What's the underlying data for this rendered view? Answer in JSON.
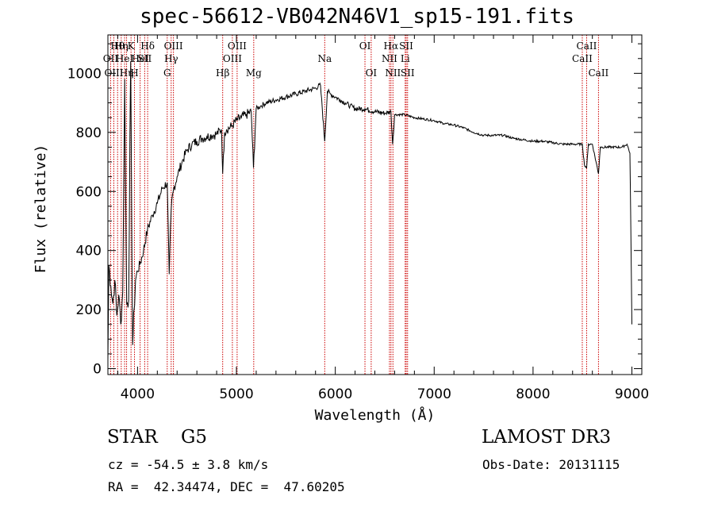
{
  "chart_data": {
    "type": "line",
    "title": "spec-56612-VB042N46V1_sp15-191.fits",
    "xlabel": "Wavelength (Å)",
    "ylabel": "Flux (relative)",
    "xlim": [
      3700,
      9100
    ],
    "ylim": [
      -20,
      1130
    ],
    "xticks": [
      4000,
      5000,
      6000,
      7000,
      8000,
      9000
    ],
    "yticks": [
      0,
      200,
      400,
      600,
      800,
      1000
    ],
    "series": [
      {
        "name": "spectrum",
        "x": [
          3700,
          3710,
          3730,
          3750,
          3770,
          3790,
          3810,
          3830,
          3850,
          3870,
          3890,
          3910,
          3930,
          3950,
          3965,
          3980,
          4000,
          4030,
          4060,
          4100,
          4150,
          4200,
          4250,
          4300,
          4320,
          4340,
          4360,
          4400,
          4450,
          4500,
          4550,
          4600,
          4650,
          4700,
          4750,
          4800,
          4850,
          4861,
          4880,
          4900,
          4950,
          5000,
          5050,
          5100,
          5150,
          5172,
          5200,
          5250,
          5300,
          5400,
          5500,
          5600,
          5700,
          5800,
          5850,
          5893,
          5920,
          5950,
          6000,
          6050,
          6100,
          6150,
          6200,
          6300,
          6400,
          6500,
          6563,
          6580,
          6600,
          6700,
          6800,
          6900,
          7000,
          7100,
          7200,
          7300,
          7400,
          7500,
          7600,
          7700,
          7800,
          7900,
          8000,
          8100,
          8200,
          8300,
          8400,
          8498,
          8520,
          8542,
          8560,
          8600,
          8662,
          8680,
          8700,
          8800,
          8900,
          8950,
          8980,
          9000
        ],
        "y": [
          30,
          350,
          280,
          220,
          300,
          180,
          250,
          150,
          260,
          980,
          220,
          230,
          1040,
          80,
          200,
          300,
          330,
          360,
          400,
          470,
          520,
          560,
          610,
          630,
          320,
          540,
          600,
          650,
          700,
          740,
          760,
          770,
          780,
          785,
          790,
          795,
          810,
          660,
          800,
          810,
          820,
          840,
          850,
          860,
          870,
          680,
          880,
          890,
          900,
          910,
          920,
          930,
          940,
          950,
          960,
          770,
          940,
          930,
          920,
          910,
          900,
          890,
          880,
          880,
          870,
          865,
          870,
          760,
          860,
          860,
          850,
          845,
          840,
          830,
          825,
          815,
          800,
          790,
          790,
          790,
          780,
          775,
          770,
          770,
          765,
          760,
          760,
          760,
          690,
          680,
          760,
          760,
          660,
          750,
          750,
          750,
          750,
          760,
          730,
          150
        ]
      }
    ],
    "line_labels": [
      {
        "wl": 3727,
        "text": "OII",
        "row": 2
      },
      {
        "wl": 3760,
        "text": "OIII",
        "row": 3
      },
      {
        "wl": 3798,
        "text": "Hθ",
        "row": 1
      },
      {
        "wl": 3835,
        "text": "Hη",
        "row": 1
      },
      {
        "wl": 3869,
        "text": "HeI",
        "row": 2
      },
      {
        "wl": 3889,
        "text": "Hη",
        "row": 3
      },
      {
        "wl": 3934,
        "text": "K",
        "row": 1
      },
      {
        "wl": 3969,
        "text": "H",
        "row": 3
      },
      {
        "wl": 4026,
        "text": "HeI",
        "row": 2
      },
      {
        "wl": 4072,
        "text": "SII",
        "row": 2
      },
      {
        "wl": 4102,
        "text": "Hδ",
        "row": 1
      },
      {
        "wl": 4300,
        "text": "G",
        "row": 3
      },
      {
        "wl": 4340,
        "text": "Hγ",
        "row": 2
      },
      {
        "wl": 4363,
        "text": "OIII",
        "row": 1
      },
      {
        "wl": 4861,
        "text": "Hβ",
        "row": 3
      },
      {
        "wl": 4959,
        "text": "OIII",
        "row": 2
      },
      {
        "wl": 5007,
        "text": "OIII",
        "row": 1
      },
      {
        "wl": 5175,
        "text": "Mg",
        "row": 3
      },
      {
        "wl": 5893,
        "text": "Na",
        "row": 2
      },
      {
        "wl": 6300,
        "text": "OI",
        "row": 1
      },
      {
        "wl": 6363,
        "text": "OI",
        "row": 3
      },
      {
        "wl": 6548,
        "text": "NII",
        "row": 2
      },
      {
        "wl": 6563,
        "text": "Hα",
        "row": 1
      },
      {
        "wl": 6583,
        "text": "NII",
        "row": 3
      },
      {
        "wl": 6707,
        "text": "Li",
        "row": 2
      },
      {
        "wl": 6717,
        "text": "SII",
        "row": 1
      },
      {
        "wl": 6731,
        "text": "SII",
        "row": 3
      },
      {
        "wl": 8498,
        "text": "CaII",
        "row": 2
      },
      {
        "wl": 8542,
        "text": "CaII",
        "row": 1
      },
      {
        "wl": 8662,
        "text": "CaII",
        "row": 3
      }
    ]
  },
  "info": {
    "object_class": "STAR    G5",
    "survey": "LAMOST DR3",
    "redshift": "cz = -54.5 ± 3.8 km/s",
    "obs_date": "Obs-Date: 20131115",
    "coords": "RA =  42.34474, DEC =  47.60205"
  },
  "colors": {
    "line_marker": "#cc0000",
    "spectrum": "#000000",
    "axes": "#000000"
  }
}
